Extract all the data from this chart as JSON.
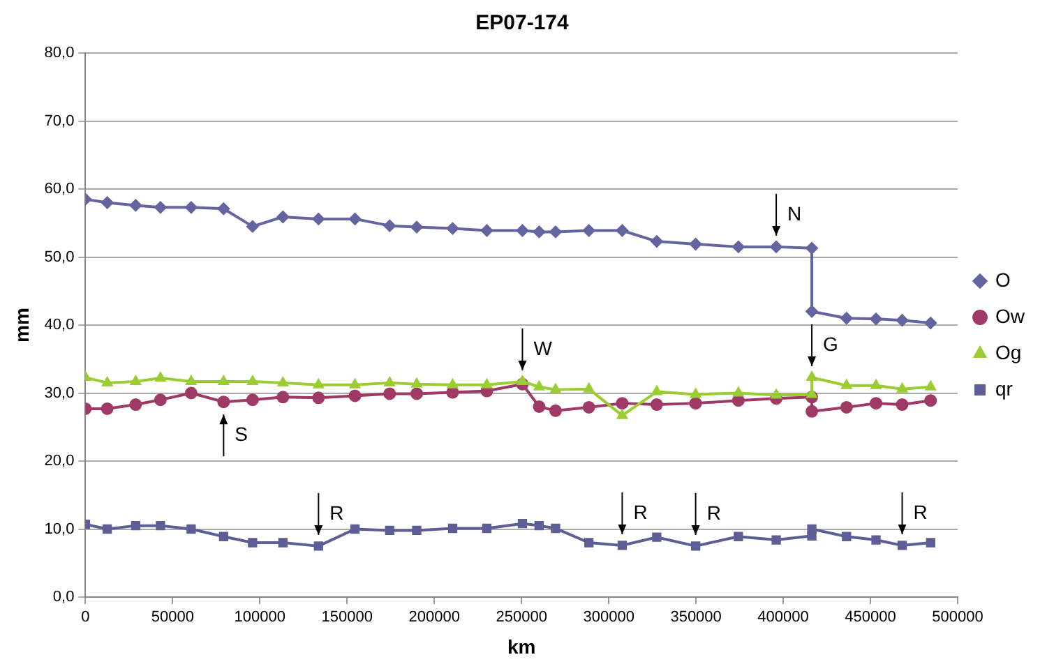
{
  "chart_data": {
    "type": "line",
    "title": "EP07-174",
    "xlabel": "km",
    "ylabel": "mm",
    "x": [
      0,
      12500,
      28800,
      43000,
      60600,
      79200,
      95800,
      113200,
      133600,
      154500,
      174400,
      189900,
      210500,
      230100,
      250500,
      260100,
      269500,
      288600,
      307700,
      327500,
      349800,
      374300,
      396000,
      416400,
      416400,
      436300,
      453200,
      468200,
      484500
    ],
    "series": [
      {
        "name": "O",
        "color": "#6464a0",
        "marker": "diamond",
        "values": [
          58.5,
          58.0,
          57.6,
          57.3,
          57.3,
          57.1,
          54.5,
          55.9,
          55.6,
          55.6,
          54.6,
          54.4,
          54.2,
          53.9,
          53.9,
          53.7,
          53.7,
          53.9,
          53.9,
          52.3,
          51.9,
          51.5,
          51.5,
          51.3,
          42.0,
          41.0,
          40.9,
          40.7,
          40.3
        ]
      },
      {
        "name": "Ow",
        "color": "#9e3a65",
        "marker": "circle",
        "values": [
          27.7,
          27.7,
          28.3,
          29.0,
          30.0,
          28.7,
          29.0,
          29.4,
          29.3,
          29.6,
          29.9,
          29.9,
          30.1,
          30.3,
          31.3,
          28.0,
          27.4,
          27.9,
          28.5,
          28.3,
          28.5,
          28.9,
          29.2,
          29.4,
          27.3,
          27.9,
          28.5,
          28.3,
          28.9
        ]
      },
      {
        "name": "Og",
        "color": "#9acd32",
        "marker": "triangle",
        "values": [
          32.3,
          31.5,
          31.7,
          32.2,
          31.7,
          31.7,
          31.7,
          31.5,
          31.2,
          31.2,
          31.5,
          31.3,
          31.2,
          31.2,
          31.7,
          30.9,
          30.5,
          30.6,
          26.7,
          30.2,
          29.8,
          30.0,
          29.7,
          29.8,
          32.3,
          31.1,
          31.1,
          30.6,
          30.9
        ]
      },
      {
        "name": "qr",
        "color": "#5e5e96",
        "marker": "square",
        "values": [
          10.7,
          10.0,
          10.5,
          10.5,
          10.0,
          8.9,
          8.0,
          8.0,
          7.5,
          10.0,
          9.8,
          9.8,
          10.1,
          10.1,
          10.8,
          10.5,
          10.1,
          8.0,
          7.6,
          8.8,
          7.5,
          8.9,
          8.4,
          9.0,
          10.0,
          8.9,
          8.4,
          7.6,
          8.0
        ]
      }
    ],
    "xlim": [
      0,
      500000
    ],
    "xticks": [
      0,
      50000,
      100000,
      150000,
      200000,
      250000,
      300000,
      350000,
      400000,
      450000,
      500000
    ],
    "ylim": [
      0,
      80
    ],
    "yticks": [
      {
        "value": 0,
        "label": "0,0"
      },
      {
        "value": 10,
        "label": "10,0"
      },
      {
        "value": 20,
        "label": "20,0"
      },
      {
        "value": 30,
        "label": "30,0"
      },
      {
        "value": 40,
        "label": "40,0"
      },
      {
        "value": 50,
        "label": "50,0"
      },
      {
        "value": 60,
        "label": "60,0"
      },
      {
        "value": 70,
        "label": "70,0"
      },
      {
        "value": 80,
        "label": "80,0"
      }
    ],
    "grid": "y",
    "legend": "right",
    "line_style": "solid",
    "annotations": [
      {
        "text": "S",
        "x": 79200,
        "y": 28.7
      },
      {
        "text": "R",
        "x": 133600,
        "y": 7.5
      },
      {
        "text": "W",
        "x": 250500,
        "y": 31.7
      },
      {
        "text": "R",
        "x": 307700,
        "y": 7.6
      },
      {
        "text": "R",
        "x": 349800,
        "y": 7.5
      },
      {
        "text": "N",
        "x": 396000,
        "y": 51.5
      },
      {
        "text": "G",
        "x": 416400,
        "y": 32.3
      },
      {
        "text": "R",
        "x": 468200,
        "y": 7.6
      }
    ]
  }
}
